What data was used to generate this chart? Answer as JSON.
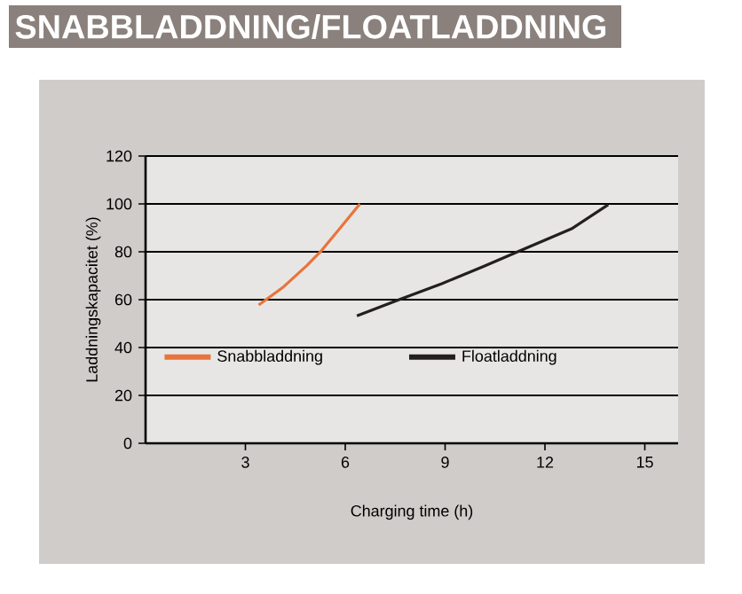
{
  "chart_data": {
    "type": "line",
    "title": "SNABBLADDNING/FLOATLADDNING",
    "xlabel": "Charging time (h)",
    "ylabel": "Laddningskapacitet (%)",
    "xlim": [
      0,
      16
    ],
    "xticks": [
      3,
      6,
      9,
      12,
      15
    ],
    "ylim": [
      0,
      120
    ],
    "yticks": [
      0,
      20,
      40,
      60,
      80,
      100,
      120
    ],
    "grid": "y",
    "legend": "left",
    "line_style": "solid",
    "marker": "none",
    "series": [
      {
        "name": "Snabbladdning",
        "color": "#e8743b",
        "x": [
          3.4,
          4.15,
          4.85,
          5.3,
          5.9,
          6.44
        ],
        "values": [
          57.8,
          65.4,
          74.3,
          80.7,
          90.8,
          100
        ]
      },
      {
        "name": "Floatladdning",
        "color": "#231f20",
        "x": [
          6.35,
          7.67,
          8.9,
          10.14,
          11.38,
          12.8,
          13.9
        ],
        "values": [
          53.2,
          60.3,
          66.7,
          73.8,
          81.2,
          89.6,
          99.7
        ]
      }
    ]
  }
}
